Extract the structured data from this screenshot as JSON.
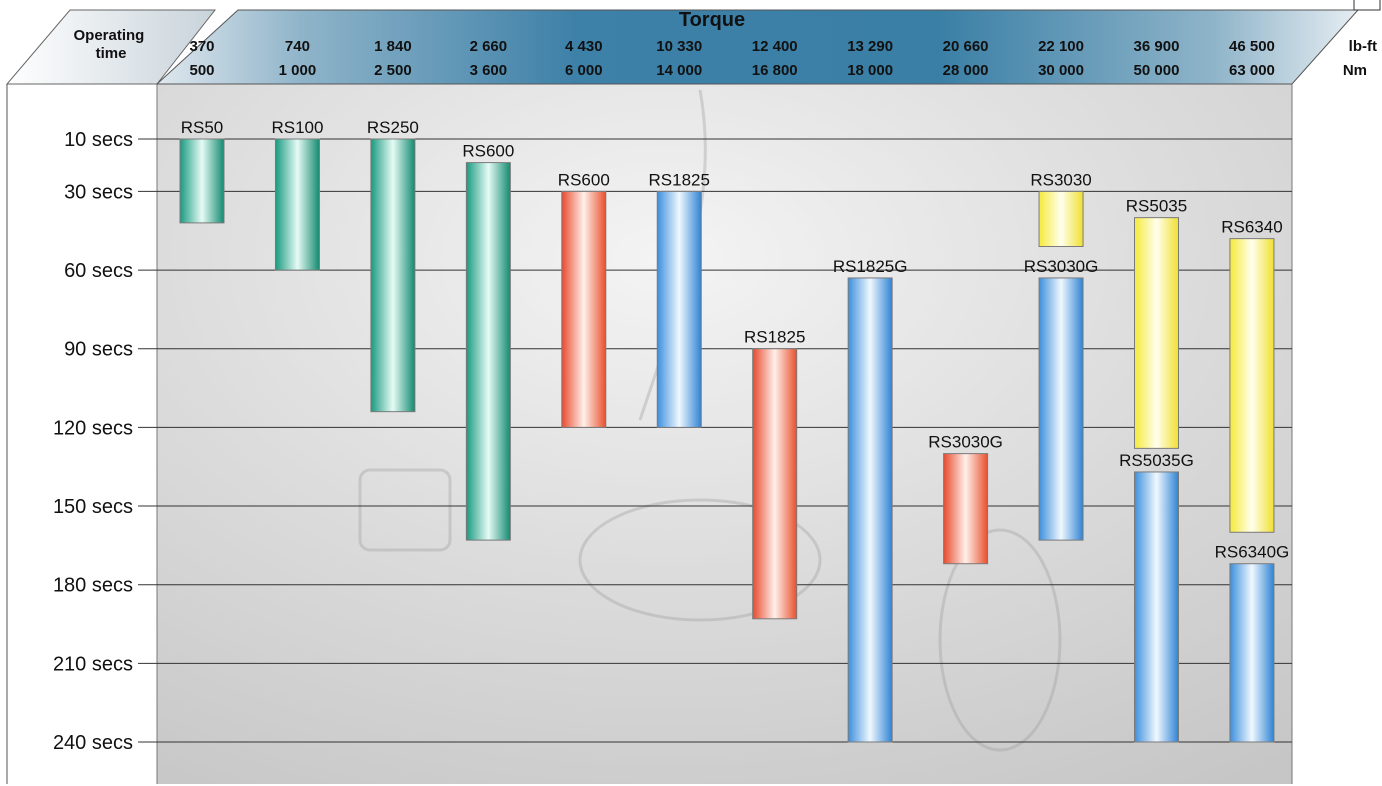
{
  "chart_data": {
    "type": "bar",
    "orientation": "floating-range",
    "header_title": "Torque",
    "ylabel": "Operating time",
    "unit_top": "lb-ft",
    "unit_bottom": "Nm",
    "torque_lbft": [
      "370",
      "740",
      "1 840",
      "2 660",
      "4 430",
      "10 330",
      "12 400",
      "13 290",
      "20 660",
      "22 100",
      "36 900",
      "46 500"
    ],
    "torque_nm": [
      "500",
      "1 000",
      "2 500",
      "3 600",
      "6 000",
      "14 000",
      "16 800",
      "18 000",
      "28 000",
      "30 000",
      "50 000",
      "63 000"
    ],
    "y_ticks": [
      {
        "value": 10,
        "label": "10 secs"
      },
      {
        "value": 30,
        "label": "30 secs"
      },
      {
        "value": 60,
        "label": "60 secs"
      },
      {
        "value": 90,
        "label": "90 secs"
      },
      {
        "value": 120,
        "label": "120 secs"
      },
      {
        "value": 150,
        "label": "150 secs"
      },
      {
        "value": 180,
        "label": "180 secs"
      },
      {
        "value": 210,
        "label": "210 secs"
      },
      {
        "value": 240,
        "label": "240 secs"
      }
    ],
    "bars": [
      {
        "col": 0,
        "label": "RS50",
        "start": 10,
        "end": 42,
        "color": "green"
      },
      {
        "col": 1,
        "label": "RS100",
        "start": 10,
        "end": 60,
        "color": "green"
      },
      {
        "col": 2,
        "label": "RS250",
        "start": 10,
        "end": 114,
        "color": "green"
      },
      {
        "col": 3,
        "label": "RS600",
        "start": 19,
        "end": 163,
        "color": "green"
      },
      {
        "col": 4,
        "label": "RS600",
        "start": 30,
        "end": 120,
        "color": "red"
      },
      {
        "col": 5,
        "label": "RS1825",
        "start": 30,
        "end": 120,
        "color": "blue"
      },
      {
        "col": 6,
        "label": "RS1825",
        "start": 90,
        "end": 193,
        "color": "red"
      },
      {
        "col": 7,
        "label": "RS1825G",
        "start": 63,
        "end": 240,
        "color": "blue"
      },
      {
        "col": 8,
        "label": "RS3030G",
        "start": 130,
        "end": 172,
        "color": "red"
      },
      {
        "col": 9,
        "label": "RS3030",
        "start": 30,
        "end": 51,
        "color": "yellow"
      },
      {
        "col": 9,
        "label": "RS3030G",
        "start": 63,
        "end": 163,
        "color": "blue"
      },
      {
        "col": 10,
        "label": "RS5035",
        "start": 40,
        "end": 128,
        "color": "yellow"
      },
      {
        "col": 10,
        "label": "RS5035G",
        "start": 137,
        "end": 240,
        "color": "blue"
      },
      {
        "col": 11,
        "label": "RS6340",
        "start": 48,
        "end": 160,
        "color": "yellow"
      },
      {
        "col": 11,
        "label": "RS6340G",
        "start": 172,
        "end": 240,
        "color": "blue"
      }
    ],
    "colors": {
      "green": [
        "#1a9a80",
        "#e6fbf5",
        "#138a70"
      ],
      "red": [
        "#e84a2e",
        "#fff0ea",
        "#e8502e"
      ],
      "blue": [
        "#3d8fdc",
        "#f0f8ff",
        "#2f83d4"
      ],
      "yellow": [
        "#f5ea3a",
        "#ffffee",
        "#f0e030"
      ]
    },
    "header_color": "#3a7fa6",
    "grid": true
  }
}
